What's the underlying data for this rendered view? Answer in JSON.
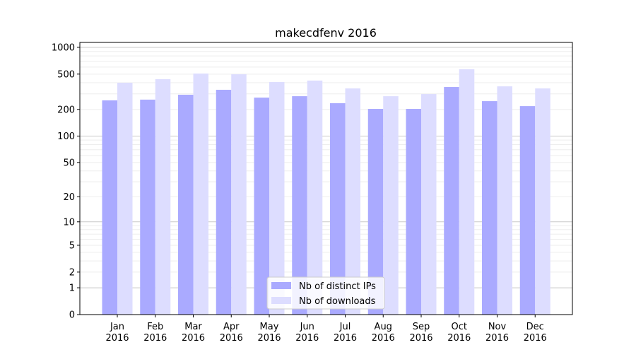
{
  "chart_data": {
    "type": "bar",
    "title": "makecdfenv 2016",
    "xlabel": "",
    "ylabel": "",
    "yscale": "log(1+y)",
    "ylim": [
      0,
      1100
    ],
    "yticks": [
      0,
      1,
      2,
      5,
      10,
      20,
      50,
      100,
      200,
      500,
      1000
    ],
    "categories": [
      "Jan\n2016",
      "Feb\n2016",
      "Mar\n2016",
      "Apr\n2016",
      "May\n2016",
      "Jun\n2016",
      "Jul\n2016",
      "Aug\n2016",
      "Sep\n2016",
      "Oct\n2016",
      "Nov\n2016",
      "Dec\n2016"
    ],
    "series": [
      {
        "name": "Nb of distinct IPs",
        "color": "#aaaaff",
        "values": [
          253,
          258,
          293,
          333,
          272,
          282,
          235,
          203,
          203,
          358,
          248,
          218
        ]
      },
      {
        "name": "Nb of downloads",
        "color": "#ddddff",
        "values": [
          400,
          438,
          507,
          498,
          407,
          423,
          345,
          282,
          298,
          567,
          364,
          345
        ]
      }
    ],
    "legend_position": "bottom-center",
    "grid": true
  }
}
